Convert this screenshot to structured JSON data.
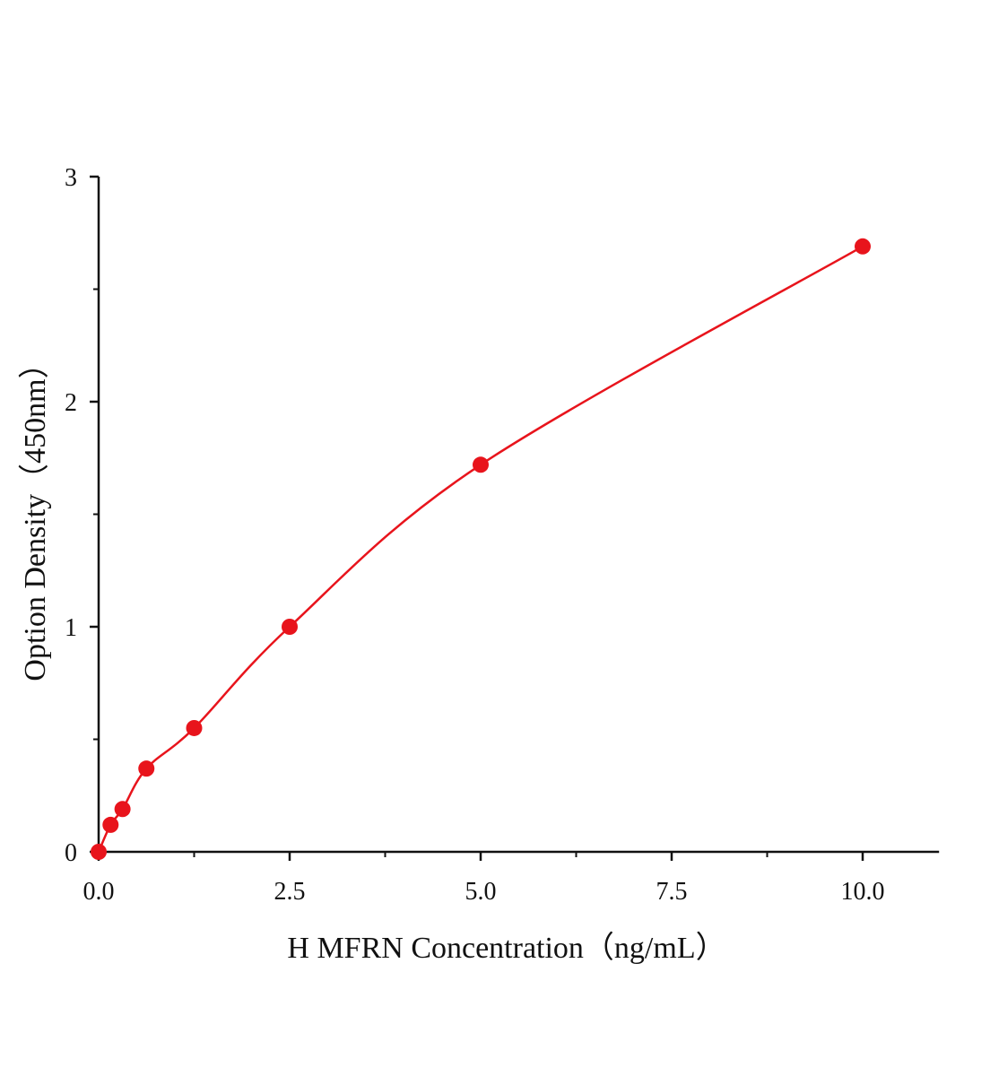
{
  "chart_data": {
    "type": "scatter",
    "title": "",
    "xlabel": "H MFRN Concentration（ng/mL）",
    "ylabel": "Option Density（450nm）",
    "xlim": [
      0,
      11
    ],
    "ylim": [
      0,
      3
    ],
    "x_ticks": [
      0,
      2.5,
      5,
      7.5,
      10
    ],
    "x_tick_labels": [
      "0.0",
      "2.5",
      "5.0",
      "7.5",
      "10.0"
    ],
    "y_ticks": [
      0,
      1,
      2,
      3
    ],
    "y_tick_labels": [
      "0",
      "1",
      "2",
      "3"
    ],
    "grid": false,
    "series": [
      {
        "x": [
          0,
          0.156,
          0.3125,
          0.625,
          1.25,
          2.5,
          5,
          10
        ],
        "y": [
          0,
          0.12,
          0.19,
          0.37,
          0.55,
          1.0,
          1.72,
          2.69
        ],
        "color": "#e8141c",
        "marker": "circle",
        "fit_line": true
      }
    ]
  }
}
